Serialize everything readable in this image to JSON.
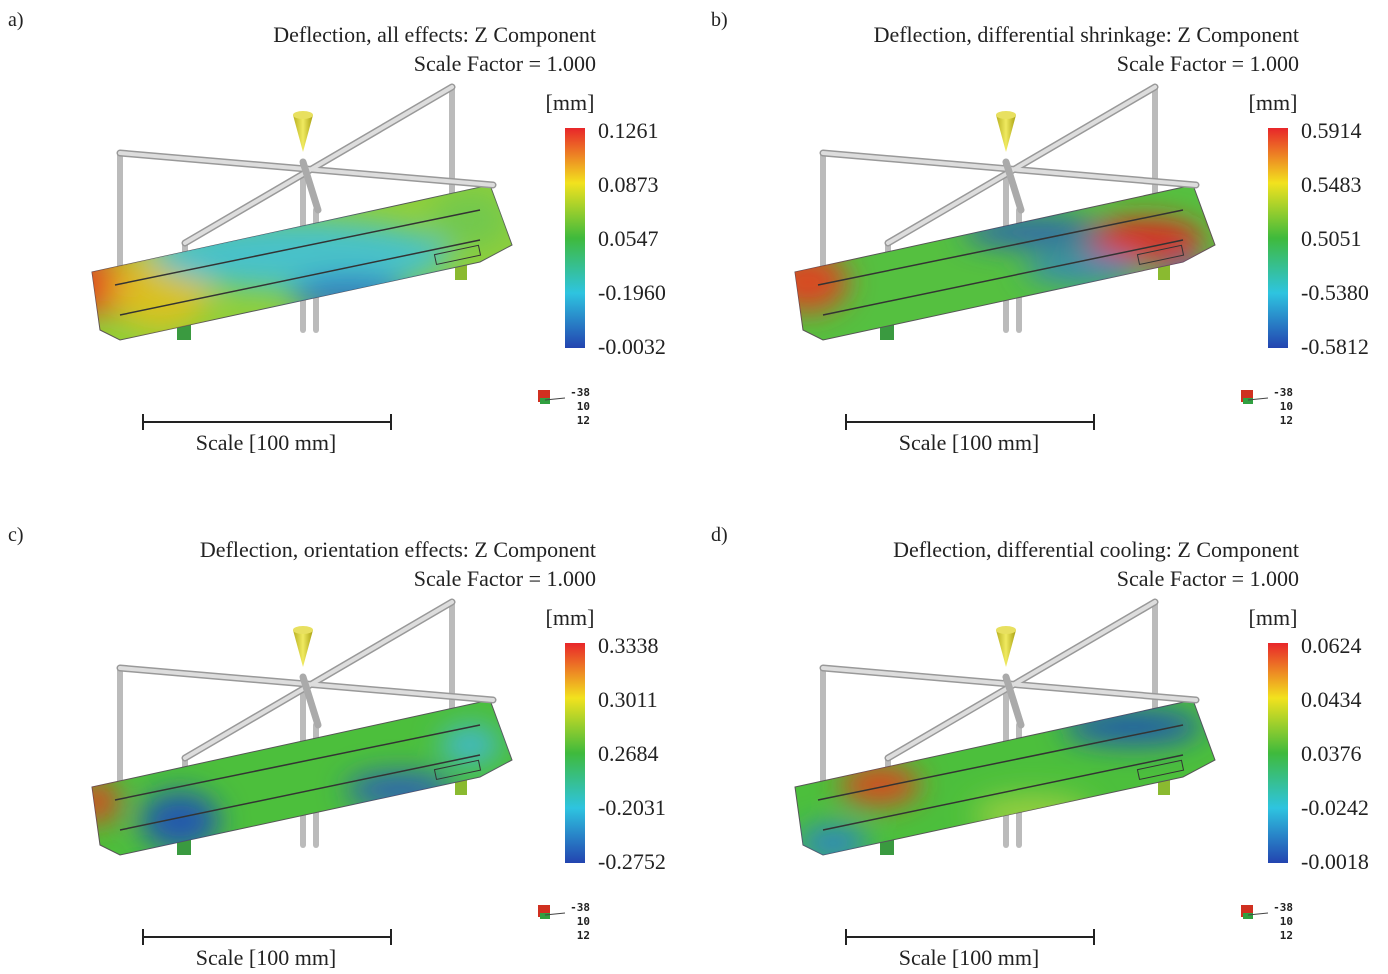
{
  "panels": [
    {
      "label": "a)",
      "title": "Deflection, all effects: Z Component",
      "subtitle": "Scale Factor = 1.000",
      "unit": "[mm]",
      "legend": [
        "0.1261",
        "0.0873",
        "0.0547",
        "-0.1960",
        "-0.0032"
      ],
      "triad": [
        "-38",
        "10",
        "12"
      ],
      "scale_label": "Scale [100 mm]"
    },
    {
      "label": "b)",
      "title": "Deflection, differential shrinkage: Z Component",
      "subtitle": "Scale Factor = 1.000",
      "unit": "[mm]",
      "legend": [
        "0.5914",
        "0.5483",
        "0.5051",
        "-0.5380",
        "-0.5812"
      ],
      "triad": [
        "-38",
        "10",
        "12"
      ],
      "scale_label": "Scale [100 mm]"
    },
    {
      "label": "c)",
      "title": "Deflection, orientation effects: Z Component",
      "subtitle": "Scale Factor = 1.000",
      "unit": "[mm]",
      "legend": [
        "0.3338",
        "0.3011",
        "0.2684",
        "-0.2031",
        "-0.2752"
      ],
      "triad": [
        "-38",
        "10",
        "12"
      ],
      "scale_label": "Scale [100 mm]"
    },
    {
      "label": "d)",
      "title": "Deflection, differential cooling: Z Component",
      "subtitle": "Scale Factor = 1.000",
      "unit": "[mm]",
      "legend": [
        "0.0624",
        "0.0434",
        "0.0376",
        "-0.0242",
        "-0.0018"
      ],
      "triad": [
        "-38",
        "10",
        "12"
      ],
      "scale_label": "Scale [100 mm]"
    }
  ]
}
